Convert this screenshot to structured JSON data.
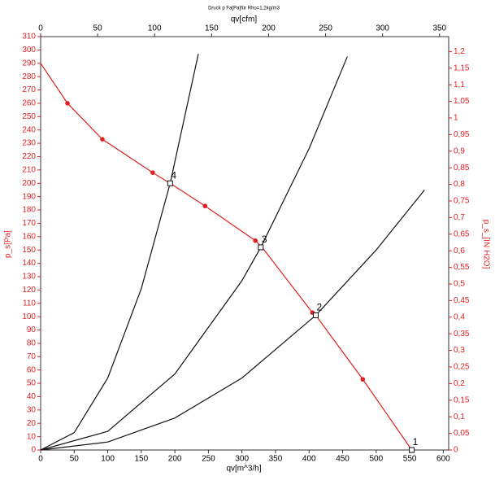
{
  "chart_data": {
    "type": "line",
    "title": "Druck p Fa[Pa]für Rho=1,2kg/m3",
    "xlabel": "qv[m^3/h]",
    "x2label": "qv[cfm]",
    "ylabel": "p_s[Pa]",
    "y2label": "p_s_[IN H2O]",
    "xlim": [
      0,
      608
    ],
    "xticks": [
      0,
      50,
      100,
      150,
      200,
      250,
      300,
      350,
      400,
      450,
      500,
      550,
      600
    ],
    "x2lim": [
      0,
      358
    ],
    "x2ticks": [
      0,
      50,
      100,
      150,
      200,
      250,
      300,
      350
    ],
    "ylim": [
      0,
      310
    ],
    "yticks": [
      0,
      10,
      20,
      30,
      40,
      50,
      60,
      70,
      80,
      90,
      100,
      110,
      120,
      130,
      140,
      150,
      160,
      170,
      180,
      190,
      200,
      210,
      220,
      230,
      240,
      250,
      260,
      270,
      280,
      290,
      300,
      310
    ],
    "y2lim": [
      0,
      1.245
    ],
    "y2ticks": [
      0,
      {
        "value": 0.05,
        "label": "0,05"
      },
      {
        "value": 0.1,
        "label": "0,1"
      },
      {
        "value": 0.15,
        "label": "0,15"
      },
      {
        "value": 0.2,
        "label": "0,2"
      },
      {
        "value": 0.25,
        "label": "0,25"
      },
      {
        "value": 0.3,
        "label": "0,3"
      },
      {
        "value": 0.35,
        "label": "0,35"
      },
      {
        "value": 0.4,
        "label": "0,4"
      },
      {
        "value": 0.45,
        "label": "0,45"
      },
      {
        "value": 0.5,
        "label": "0,5"
      },
      {
        "value": 0.55,
        "label": "0,55"
      },
      {
        "value": 0.6,
        "label": "0,6"
      },
      {
        "value": 0.65,
        "label": "0,65"
      },
      {
        "value": 0.7,
        "label": "0,7"
      },
      {
        "value": 0.75,
        "label": "0,75"
      },
      {
        "value": 0.8,
        "label": "0,8"
      },
      {
        "value": 0.85,
        "label": "0,85"
      },
      {
        "value": 0.9,
        "label": "0,9"
      },
      {
        "value": 0.95,
        "label": "0,95"
      },
      1,
      {
        "value": 1.05,
        "label": "1,05"
      },
      {
        "value": 1.1,
        "label": "1,1"
      },
      {
        "value": 1.15,
        "label": "1,15"
      },
      {
        "value": 1.2,
        "label": "1,2"
      }
    ],
    "series": [
      {
        "color": "#e02020",
        "line": true,
        "x": [
          0,
          40,
          92,
          167,
          193,
          245,
          320,
          330,
          405,
          410,
          480,
          553
        ],
        "values": [
          290,
          260,
          233,
          208,
          200,
          183,
          157,
          152,
          103,
          101,
          53,
          0
        ]
      },
      {
        "color": "#e02020",
        "line": false,
        "x": [
          40,
          92,
          167,
          245,
          320,
          405,
          480
        ],
        "values": [
          260,
          233,
          208,
          183,
          157,
          103,
          53
        ]
      },
      {
        "color": "#111111",
        "line": true,
        "x": [
          0,
          50,
          100,
          150,
          193,
          235
        ],
        "values": [
          0,
          13,
          54,
          121,
          200,
          297
        ]
      },
      {
        "color": "#111111",
        "line": true,
        "x": [
          0,
          100,
          200,
          300,
          328,
          400,
          457
        ],
        "values": [
          0,
          14,
          57,
          127,
          152,
          226,
          295
        ]
      },
      {
        "color": "#111111",
        "line": true,
        "x": [
          0,
          100,
          200,
          300,
          410,
          500,
          572
        ],
        "values": [
          0,
          6,
          24,
          54,
          101,
          150,
          195
        ]
      }
    ],
    "annotations": [
      {
        "label": "4",
        "x": 193,
        "y": 200
      },
      {
        "label": "3",
        "x": 328,
        "y": 152
      },
      {
        "label": "2",
        "x": 410,
        "y": 101
      },
      {
        "label": "1",
        "x": 553,
        "y": 0
      }
    ]
  }
}
